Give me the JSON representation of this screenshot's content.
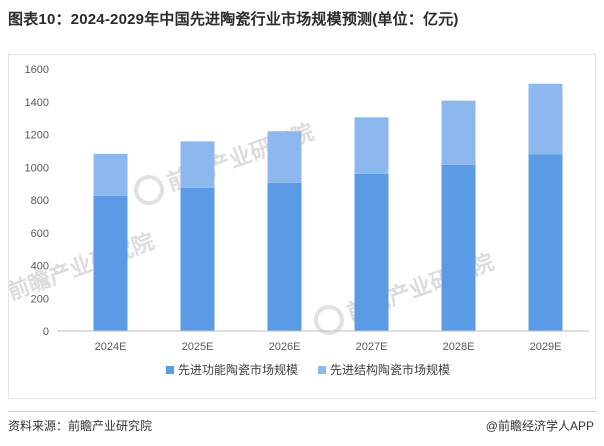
{
  "title": "图表10：2024-2029年中国先进陶瓷行业市场规模预测(单位：亿元)",
  "source": "资料来源：前瞻产业研究院",
  "credit": "@前瞻经济学人APP",
  "watermark": "前瞻产业研究院",
  "colors": {
    "functional": "#5b9be6",
    "structural": "#8cb8ee",
    "axis": "#bfbfbf"
  },
  "chart_data": {
    "type": "bar",
    "stacked": true,
    "categories": [
      "2024E",
      "2025E",
      "2026E",
      "2027E",
      "2028E",
      "2029E"
    ],
    "series": [
      {
        "name": "先进功能陶瓷市场规模",
        "values": [
          825,
          875,
          905,
          960,
          1015,
          1078
        ]
      },
      {
        "name": "先进结构陶瓷市场规模",
        "values": [
          257,
          283,
          315,
          345,
          392,
          432
        ]
      }
    ],
    "yticks": [
      0,
      200,
      400,
      600,
      800,
      1000,
      1200,
      1400,
      1600
    ],
    "ylim": [
      0,
      1600
    ],
    "grid": false,
    "legend": "bottom"
  }
}
